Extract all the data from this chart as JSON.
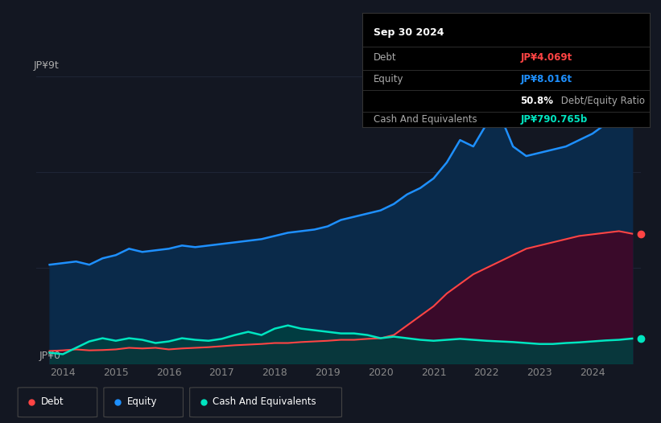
{
  "bg_color": "#131722",
  "chart_bg": "#131722",
  "grid_color": "#1e2535",
  "ylabel_top": "JP¥9t",
  "ylabel_bottom": "JP¥0",
  "ylim": [
    0,
    9
  ],
  "xlim_start": 2013.5,
  "xlim_end": 2024.92,
  "xticks": [
    2014,
    2015,
    2016,
    2017,
    2018,
    2019,
    2020,
    2021,
    2022,
    2023,
    2024
  ],
  "line_debt_color": "#ff4444",
  "line_equity_color": "#1e90ff",
  "line_cash_color": "#00e5c0",
  "fill_equity_color": "#0a2a4a",
  "fill_debt_color": "#3a0a2a",
  "fill_cash_color": "#004040",
  "tooltip": {
    "date": "Sep 30 2024",
    "debt_label": "Debt",
    "debt_value": "JP¥4.069t",
    "debt_color": "#ff4444",
    "equity_label": "Equity",
    "equity_value": "JP¥8.016t",
    "equity_color": "#1e90ff",
    "ratio_bold": "50.8%",
    "ratio_rest": " Debt/Equity Ratio",
    "cash_label": "Cash And Equivalents",
    "cash_value": "JP¥790.765b",
    "cash_color": "#00e5c0",
    "label_color": "#aaaaaa",
    "sep_color": "#333333",
    "bg": "#000000"
  },
  "legend_items": [
    {
      "label": "Debt",
      "color": "#ff4444"
    },
    {
      "label": "Equity",
      "color": "#1e90ff"
    },
    {
      "label": "Cash And Equivalents",
      "color": "#00e5c0"
    }
  ],
  "equity_x": [
    2013.75,
    2014.0,
    2014.25,
    2014.5,
    2014.75,
    2015.0,
    2015.25,
    2015.5,
    2015.75,
    2016.0,
    2016.25,
    2016.5,
    2016.75,
    2017.0,
    2017.25,
    2017.5,
    2017.75,
    2018.0,
    2018.25,
    2018.5,
    2018.75,
    2019.0,
    2019.25,
    2019.5,
    2019.75,
    2020.0,
    2020.25,
    2020.5,
    2020.75,
    2021.0,
    2021.25,
    2021.5,
    2021.75,
    2022.0,
    2022.25,
    2022.5,
    2022.75,
    2023.0,
    2023.25,
    2023.5,
    2023.75,
    2024.0,
    2024.25,
    2024.5,
    2024.75
  ],
  "equity_y": [
    3.1,
    3.15,
    3.2,
    3.1,
    3.3,
    3.4,
    3.6,
    3.5,
    3.55,
    3.6,
    3.7,
    3.65,
    3.7,
    3.75,
    3.8,
    3.85,
    3.9,
    4.0,
    4.1,
    4.15,
    4.2,
    4.3,
    4.5,
    4.6,
    4.7,
    4.8,
    5.0,
    5.3,
    5.5,
    5.8,
    6.3,
    7.0,
    6.8,
    7.5,
    7.8,
    6.8,
    6.5,
    6.6,
    6.7,
    6.8,
    7.0,
    7.2,
    7.5,
    7.8,
    8.1
  ],
  "debt_x": [
    2013.75,
    2014.0,
    2014.25,
    2014.5,
    2014.75,
    2015.0,
    2015.25,
    2015.5,
    2015.75,
    2016.0,
    2016.25,
    2016.5,
    2016.75,
    2017.0,
    2017.25,
    2017.5,
    2017.75,
    2018.0,
    2018.25,
    2018.5,
    2018.75,
    2019.0,
    2019.25,
    2019.5,
    2019.75,
    2020.0,
    2020.25,
    2020.5,
    2020.75,
    2021.0,
    2021.25,
    2021.5,
    2021.75,
    2022.0,
    2022.25,
    2022.5,
    2022.75,
    2023.0,
    2023.25,
    2023.5,
    2023.75,
    2024.0,
    2024.25,
    2024.5,
    2024.75
  ],
  "debt_y": [
    0.4,
    0.42,
    0.45,
    0.42,
    0.43,
    0.45,
    0.5,
    0.48,
    0.5,
    0.45,
    0.48,
    0.5,
    0.52,
    0.55,
    0.58,
    0.6,
    0.62,
    0.65,
    0.65,
    0.68,
    0.7,
    0.72,
    0.75,
    0.75,
    0.78,
    0.8,
    0.9,
    1.2,
    1.5,
    1.8,
    2.2,
    2.5,
    2.8,
    3.0,
    3.2,
    3.4,
    3.6,
    3.7,
    3.8,
    3.9,
    4.0,
    4.05,
    4.1,
    4.15,
    4.07
  ],
  "cash_x": [
    2013.75,
    2014.0,
    2014.25,
    2014.5,
    2014.75,
    2015.0,
    2015.25,
    2015.5,
    2015.75,
    2016.0,
    2016.25,
    2016.5,
    2016.75,
    2017.0,
    2017.25,
    2017.5,
    2017.75,
    2018.0,
    2018.25,
    2018.5,
    2018.75,
    2019.0,
    2019.25,
    2019.5,
    2019.75,
    2020.0,
    2020.25,
    2020.5,
    2020.75,
    2021.0,
    2021.25,
    2021.5,
    2021.75,
    2022.0,
    2022.25,
    2022.5,
    2022.75,
    2023.0,
    2023.25,
    2023.5,
    2023.75,
    2024.0,
    2024.25,
    2024.5,
    2024.75
  ],
  "cash_y": [
    0.35,
    0.3,
    0.5,
    0.7,
    0.8,
    0.72,
    0.8,
    0.75,
    0.65,
    0.7,
    0.8,
    0.75,
    0.72,
    0.78,
    0.9,
    1.0,
    0.9,
    1.1,
    1.2,
    1.1,
    1.05,
    1.0,
    0.95,
    0.95,
    0.9,
    0.8,
    0.85,
    0.8,
    0.75,
    0.72,
    0.75,
    0.78,
    0.75,
    0.72,
    0.7,
    0.68,
    0.65,
    0.62,
    0.62,
    0.65,
    0.67,
    0.7,
    0.73,
    0.75,
    0.79
  ]
}
